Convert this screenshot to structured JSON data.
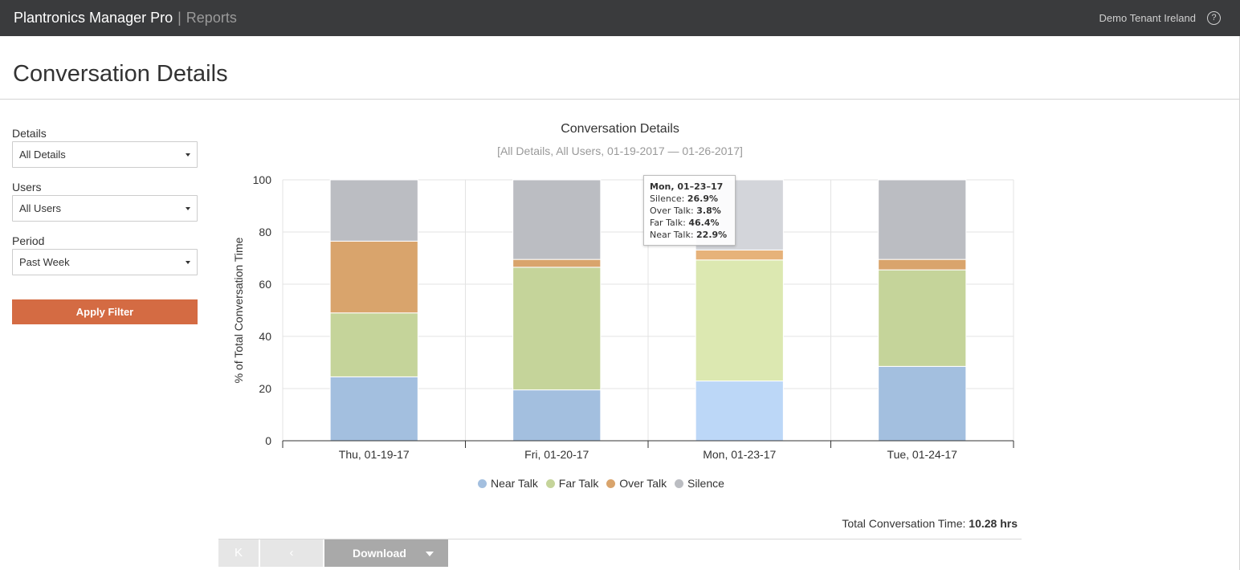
{
  "header": {
    "app_name": "Plantronics Manager Pro",
    "separator": "|",
    "section": "Reports",
    "tenant": "Demo Tenant Ireland",
    "help_glyph": "?",
    "help_icon": "question-circle-icon"
  },
  "page": {
    "title": "Conversation Details"
  },
  "filters": {
    "details_label": "Details",
    "details_value": "All Details",
    "users_label": "Users",
    "users_value": "All Users",
    "period_label": "Period",
    "period_value": "Past Week",
    "apply_label": "Apply Filter"
  },
  "chart_data": {
    "type": "bar",
    "stacked": true,
    "title": "Conversation Details",
    "subtitle": "[All Details, All Users, 01-19-2017 — 01-26-2017]",
    "ylabel": "% of Total Conversation Time",
    "xlabel": "",
    "ylim": [
      0,
      100
    ],
    "yticks": [
      0,
      20,
      40,
      60,
      80,
      100
    ],
    "grid": true,
    "legend_position": "bottom",
    "categories": [
      "Thu, 01-19-17",
      "Fri, 01-20-17",
      "Mon, 01-23-17",
      "Tue, 01-24-17"
    ],
    "series": [
      {
        "name": "Near Talk",
        "color": "#a3bfdf",
        "values": [
          24.5,
          19.5,
          22.9,
          28.5
        ]
      },
      {
        "name": "Far Talk",
        "color": "#c5d49a",
        "values": [
          24.5,
          47.0,
          46.4,
          37.0
        ]
      },
      {
        "name": "Over Talk",
        "color": "#d9a46c",
        "values": [
          27.5,
          3.0,
          3.8,
          4.0
        ]
      },
      {
        "name": "Silence",
        "color": "#bbbdc2",
        "values": [
          23.5,
          30.5,
          26.9,
          30.5
        ]
      }
    ],
    "highlight_index": 2
  },
  "tooltip": {
    "title": "Mon, 01–23–17",
    "rows": [
      {
        "label": "Silence:",
        "value": "26.9%"
      },
      {
        "label": "Over Talk:",
        "value": "3.8%"
      },
      {
        "label": "Far Talk:",
        "value": "46.4%"
      },
      {
        "label": "Near Talk:",
        "value": "22.9%"
      }
    ]
  },
  "summary": {
    "total_label": "Total Conversation Time:",
    "total_value": "10.28 hrs"
  },
  "pager": {
    "first_glyph": "K",
    "prev_glyph": "‹",
    "download_label": "Download"
  }
}
